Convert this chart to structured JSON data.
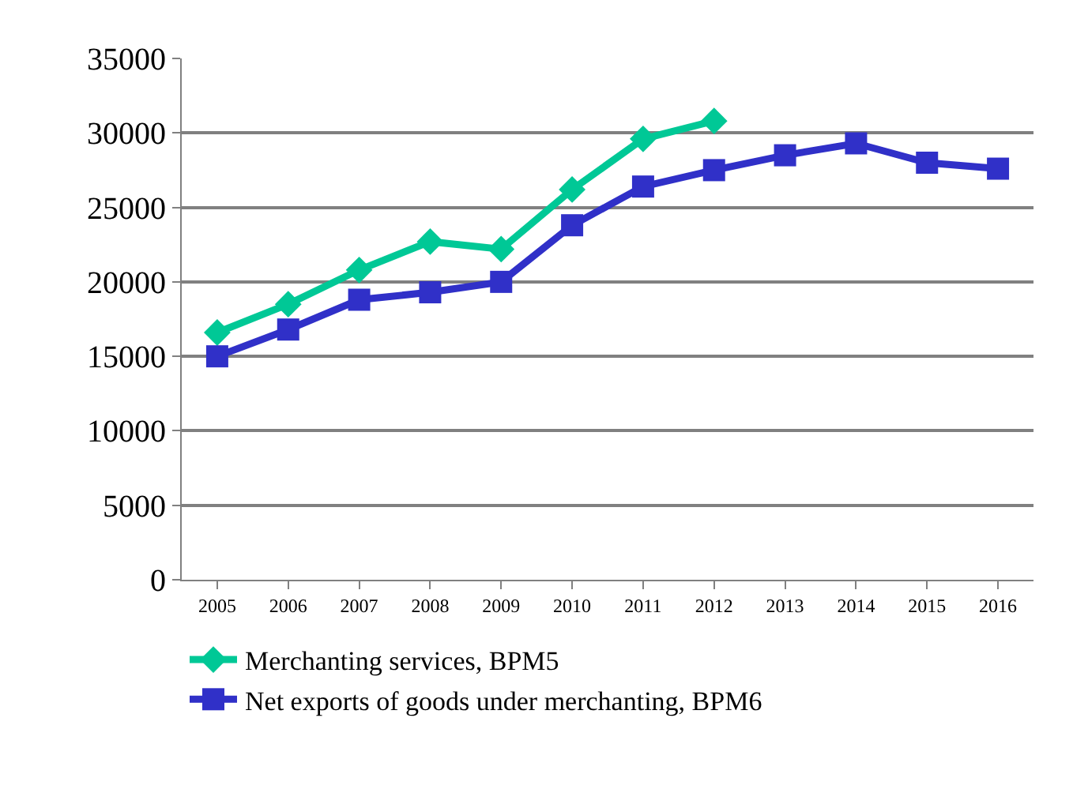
{
  "chart_data": {
    "type": "line",
    "categories": [
      "2005",
      "2006",
      "2007",
      "2008",
      "2009",
      "2010",
      "2011",
      "2012",
      "2013",
      "2014",
      "2015",
      "2016"
    ],
    "series": [
      {
        "name": "Merchanting services, BPM5",
        "color": "#00c896",
        "marker": "diamond",
        "values": [
          16600,
          18500,
          20800,
          22700,
          22200,
          26200,
          29600,
          30800,
          null,
          null,
          null,
          null
        ]
      },
      {
        "name": "Net exports of goods under merchanting, BPM6",
        "color": "#3030c8",
        "marker": "square",
        "values": [
          15000,
          16800,
          18800,
          19300,
          20000,
          23800,
          26400,
          27500,
          28500,
          29300,
          28000,
          27600
        ]
      }
    ],
    "ylim": [
      0,
      35000
    ],
    "yticks": [
      0,
      5000,
      10000,
      15000,
      20000,
      25000,
      30000,
      35000
    ],
    "grid": "y",
    "legend": "bottom",
    "line_style": "solid"
  }
}
